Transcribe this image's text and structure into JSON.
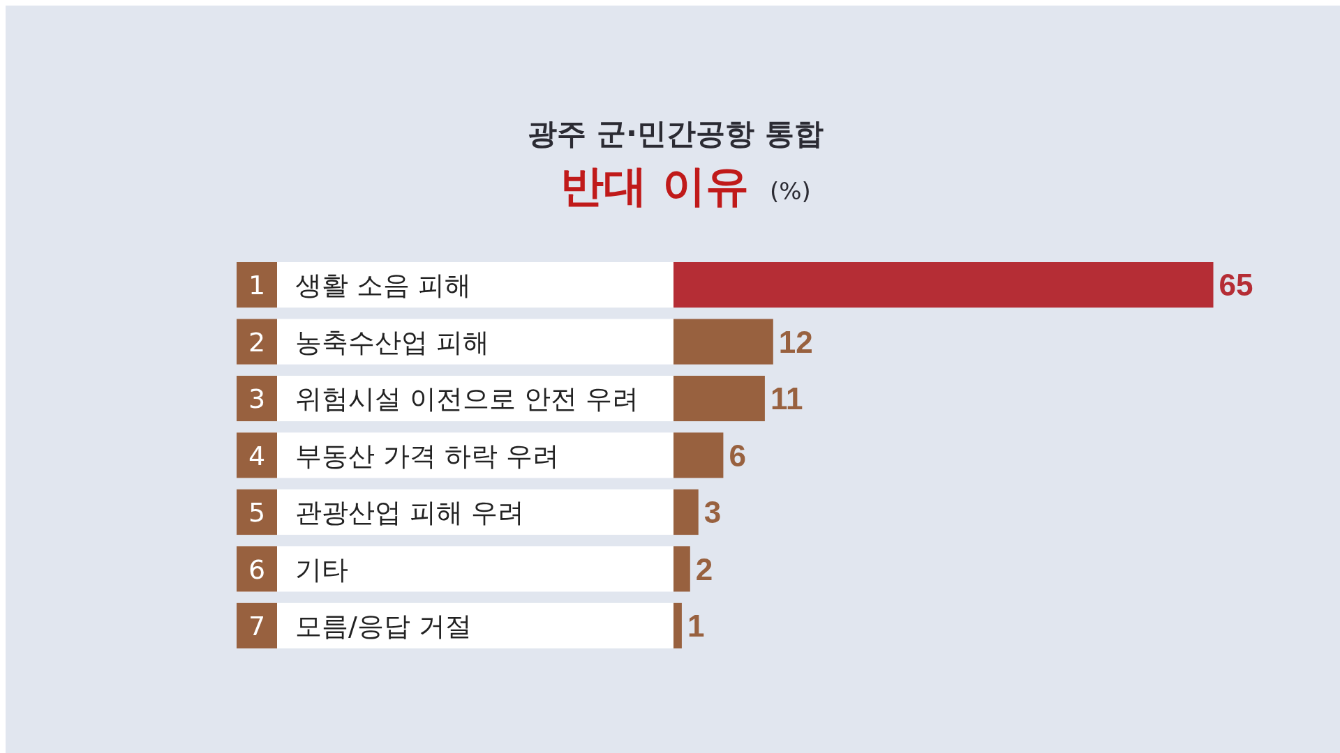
{
  "chart_data": {
    "type": "bar",
    "orientation": "horizontal",
    "title": "광주 군·민간공항 통합",
    "subtitle": "반대 이유",
    "categories": [
      "생활 소음 피해",
      "농축수산업 피해",
      "위험시설 이전으로 안전 우려",
      "부동산 가격 하락 우려",
      "관광산업 피해 우려",
      "기타",
      "모름/응답 거절"
    ],
    "values": [
      65,
      12,
      11,
      6,
      3,
      2,
      1
    ],
    "colors": [
      "#b52d35",
      "#98613f",
      "#98613f",
      "#98613f",
      "#98613f",
      "#98613f",
      "#98613f"
    ],
    "data_labels": true,
    "annotations": [
      "(%)",
      "1",
      "2",
      "3",
      "4",
      "5",
      "6",
      "7"
    ]
  }
}
